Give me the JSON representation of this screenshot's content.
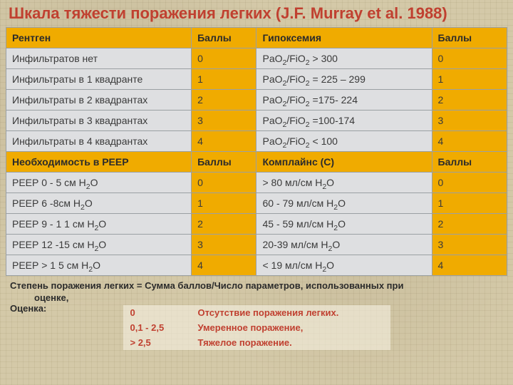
{
  "title": "Шкала тяжести поражения легких (J.F. Murray et al. 1988)",
  "headers1": {
    "c1": "Рентген",
    "c2": "Баллы",
    "c3": "Гипоксемия",
    "c4": "Баллы"
  },
  "rows1": [
    {
      "c1": "Инфильтратов нет",
      "c2": "0",
      "c3": "PaO<sub>2</sub>/FiO<sub>2</sub> > 300",
      "c4": "0"
    },
    {
      "c1": "Инфильтраты в 1 квадранте",
      "c2": "1",
      "c3": "PaO<sub>2</sub>/FiO<sub>2</sub> = 225 – 299",
      "c4": "1"
    },
    {
      "c1": "Инфильтраты в 2 квадрантах",
      "c2": "2",
      "c3": "PaO<sub>2</sub>/FiO<sub>2</sub> =175- 224",
      "c4": "2"
    },
    {
      "c1": "Инфильтраты в 3 квадрантах",
      "c2": "3",
      "c3": "PaO<sub>2</sub>/FiO<sub>2</sub> =100-174",
      "c4": "3"
    },
    {
      "c1": "Инфильтраты в 4 квадрантах",
      "c2": "4",
      "c3": "PaO<sub>2</sub>/FiO<sub>2</sub> < 100",
      "c4": "4"
    }
  ],
  "headers2": {
    "c1": "Необходимость в РЕЕР",
    "c2": "Баллы",
    "c3": "Комплайнс (С)",
    "c4": "Баллы"
  },
  "rows2": [
    {
      "c1": "РЕЕР 0 - 5 см Н<sub>2</sub>О",
      "c2": "0",
      "c3": "> 80 мл/см Н<sub>2</sub>О",
      "c4": "0"
    },
    {
      "c1": "РЕЕР 6 -8см Н<sub>2</sub>О",
      "c2": "1",
      "c3": "60 - 79 мл/см Н<sub>2</sub>О",
      "c4": "1"
    },
    {
      "c1": "РЕЕР 9 - 1 1 см Н<sub>2</sub>О",
      "c2": "2",
      "c3": "45 - 59 мл/см Н<sub>2</sub>О",
      "c4": "2"
    },
    {
      "c1": "РЕЕР 12 -15 см Н<sub>2</sub>О",
      "c2": "3",
      "c3": "20-39 мл/см Н<sub>2</sub>О",
      "c4": "3"
    },
    {
      "c1": "РЕЕР > 1 5 см Н<sub>2</sub>О",
      "c2": "4",
      "c3": "< 19 мл/см Н<sub>2</sub>О",
      "c4": "4"
    }
  ],
  "footer": {
    "line1": "Степень поражения легких = Сумма баллов/Число параметров, использованных при",
    "line2": "оценке,",
    "line3": "Оценка:"
  },
  "evaluation": [
    {
      "k": "0",
      "v": "Отсутствие поражения легких."
    },
    {
      "k": "0,1 - 2,5",
      "v": "Умеренное поражение,"
    },
    {
      "k": "> 2,5",
      "v": "Тяжелое поражение."
    }
  ],
  "colors": {
    "title": "#c04030",
    "header_bg": "#f0ab00",
    "gray_bg": "#dedfe1",
    "border": "#9aa0a3"
  }
}
